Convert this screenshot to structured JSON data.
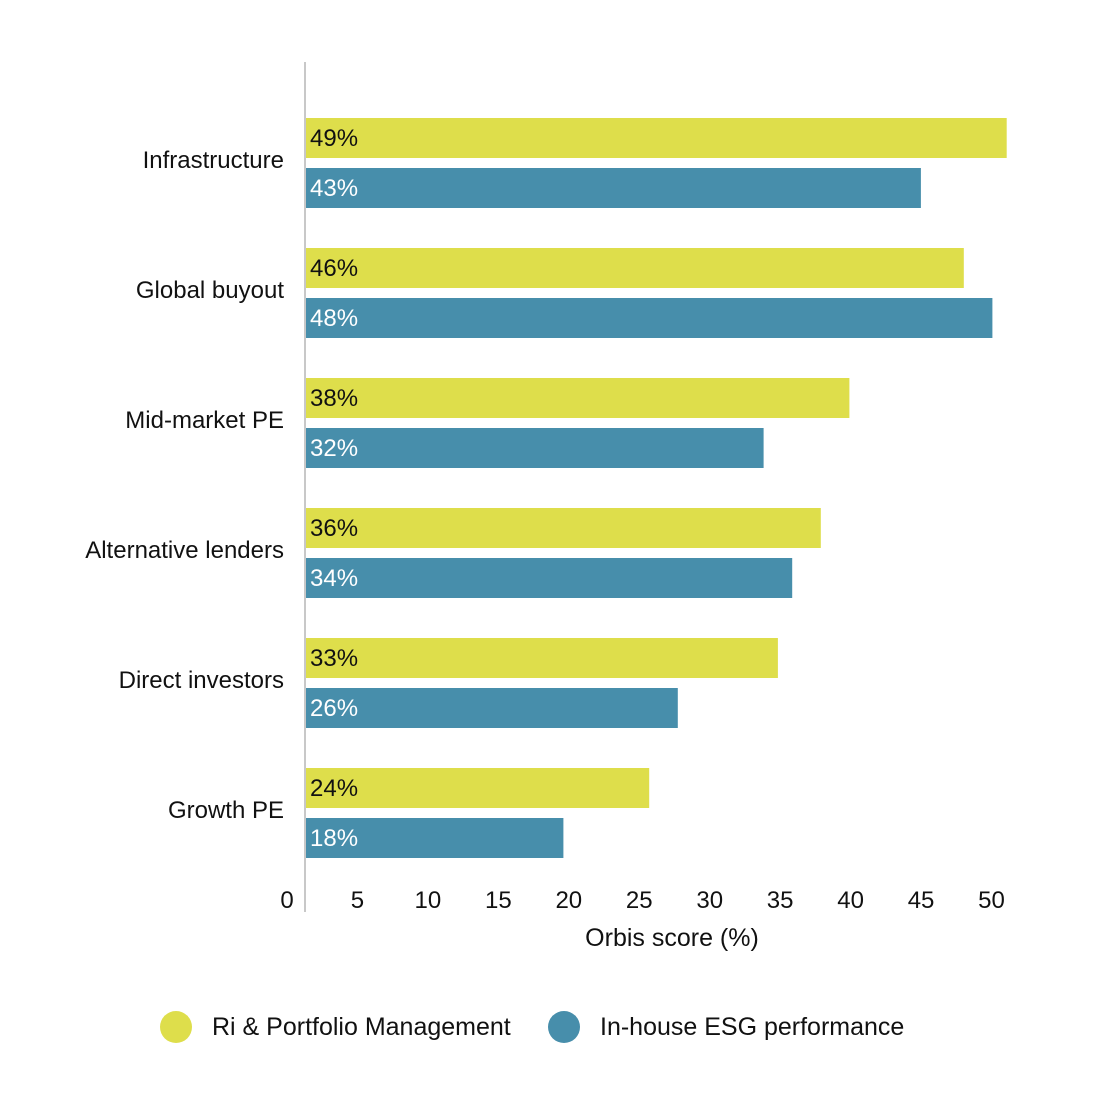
{
  "chart_data": {
    "type": "bar",
    "orientation": "horizontal",
    "categories": [
      "Infrastructure",
      "Global buyout",
      "Mid-market PE",
      "Alternative lenders",
      "Direct investors",
      "Growth PE"
    ],
    "series": [
      {
        "name": "Ri & Portfolio Management",
        "color": "#dede4b",
        "label_color": "#111111",
        "values": [
          49,
          46,
          38,
          36,
          33,
          24
        ],
        "labels": [
          "49%",
          "46%",
          "38%",
          "36%",
          "33%",
          "24%"
        ]
      },
      {
        "name": "In-house ESG performance",
        "color": "#478eab",
        "label_color": "#ffffff",
        "values": [
          43,
          48,
          32,
          34,
          26,
          18
        ],
        "labels": [
          "43%",
          "48%",
          "32%",
          "34%",
          "26%",
          "18%"
        ]
      }
    ],
    "xlabel": "Orbis score (%)",
    "ylabel": "",
    "title": "",
    "xticks": [
      "0",
      "5",
      "10",
      "15",
      "20",
      "25",
      "30",
      "35",
      "40",
      "45",
      "50"
    ],
    "xlim": [
      0,
      50
    ],
    "grid": false,
    "legend_position": "bottom"
  }
}
